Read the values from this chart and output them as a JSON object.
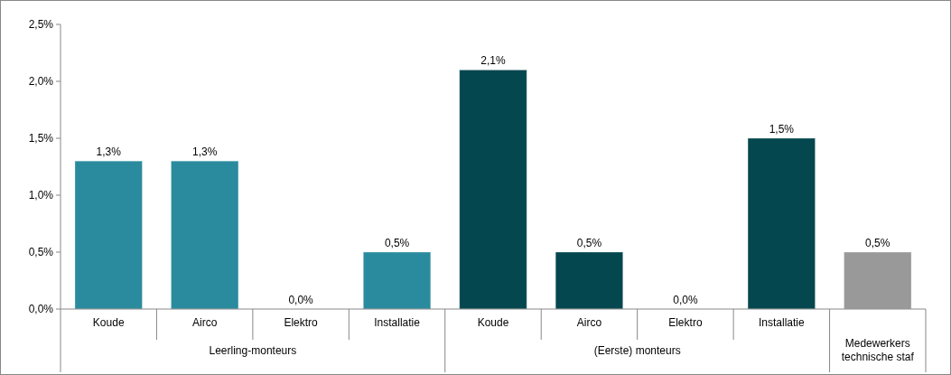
{
  "chart_data": {
    "type": "bar",
    "categories": [
      "Koude",
      "Airco",
      "Elektro",
      "Installatie",
      "Koude",
      "Airco",
      "Elektro",
      "Installatie",
      null
    ],
    "series": [
      {
        "color": "#2b8b9e",
        "values": [
          1.3,
          1.3,
          0,
          0.5,
          null,
          null,
          null,
          null,
          null
        ],
        "value_labels": [
          "1,3%",
          "1,3%",
          "0,0%",
          "0,5%",
          null,
          null,
          null,
          null,
          null
        ]
      },
      {
        "color": "#04474f",
        "values": [
          null,
          null,
          null,
          null,
          2.1,
          0.5,
          0,
          1.5,
          null
        ],
        "value_labels": [
          null,
          null,
          null,
          null,
          "2,1%",
          "0,5%",
          "0,0%",
          "1,5%",
          null
        ]
      },
      {
        "color": "#999999",
        "values": [
          null,
          null,
          null,
          null,
          null,
          null,
          null,
          null,
          0.5
        ],
        "value_labels": [
          null,
          null,
          null,
          null,
          null,
          null,
          null,
          null,
          "0,5%"
        ]
      }
    ],
    "annotations": [
      "Leerling-monteurs",
      "(Eerste) monteurs",
      "Medewerkers technische staf"
    ],
    "ylim": [
      0,
      2.5
    ],
    "yticks": [
      {
        "value": 0,
        "label": "0,0%"
      },
      {
        "value": 0.5,
        "label": "0,5%"
      },
      {
        "value": 1,
        "label": "1,0%"
      },
      {
        "value": 1.5,
        "label": "1,5%"
      },
      {
        "value": 2,
        "label": "2,0%"
      },
      {
        "value": 2.5,
        "label": "2,5%"
      }
    ]
  }
}
